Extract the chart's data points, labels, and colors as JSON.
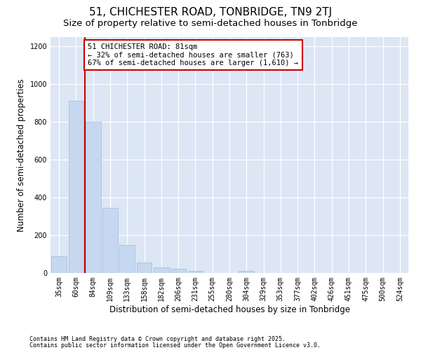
{
  "title": "51, CHICHESTER ROAD, TONBRIDGE, TN9 2TJ",
  "subtitle": "Size of property relative to semi-detached houses in Tonbridge",
  "xlabel": "Distribution of semi-detached houses by size in Tonbridge",
  "ylabel": "Number of semi-detached properties",
  "bar_color": "#c5d8f0",
  "bar_edge_color": "#a0bcd8",
  "background_color": "#dce6f5",
  "grid_color": "#ffffff",
  "annotation_box_color": "#cc0000",
  "vline_color": "#cc0000",
  "categories": [
    "35sqm",
    "60sqm",
    "84sqm",
    "109sqm",
    "133sqm",
    "158sqm",
    "182sqm",
    "206sqm",
    "231sqm",
    "255sqm",
    "280sqm",
    "304sqm",
    "329sqm",
    "353sqm",
    "377sqm",
    "402sqm",
    "426sqm",
    "451sqm",
    "475sqm",
    "500sqm",
    "524sqm"
  ],
  "values": [
    88,
    910,
    800,
    345,
    150,
    55,
    28,
    22,
    10,
    0,
    0,
    10,
    0,
    0,
    0,
    0,
    0,
    0,
    0,
    0,
    0
  ],
  "ylim": [
    0,
    1250
  ],
  "yticks": [
    0,
    200,
    400,
    600,
    800,
    1000,
    1200
  ],
  "property_label": "51 CHICHESTER ROAD: 81sqm",
  "pct_smaller": "← 32% of semi-detached houses are smaller (763)",
  "pct_larger": "67% of semi-detached houses are larger (1,610) →",
  "vline_bin_index": 2,
  "footnote1": "Contains HM Land Registry data © Crown copyright and database right 2025.",
  "footnote2": "Contains public sector information licensed under the Open Government Licence v3.0.",
  "title_fontsize": 11,
  "subtitle_fontsize": 9.5,
  "tick_fontsize": 7,
  "ylabel_fontsize": 8.5,
  "xlabel_fontsize": 8.5,
  "annotation_fontsize": 7.5,
  "footnote_fontsize": 6
}
